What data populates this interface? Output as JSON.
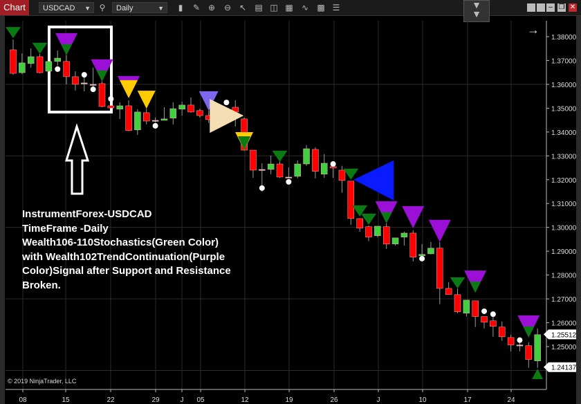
{
  "toolbar": {
    "chart_label": "Chart",
    "instrument": "USDCAD",
    "timeframe": "Daily",
    "icons": [
      "search-icon",
      "bar-type-icon",
      "pencil-icon",
      "zoom-in-icon",
      "zoom-out-icon",
      "pointer-icon",
      "data-box-icon",
      "properties-icon",
      "indicators-icon",
      "strategies-icon",
      "templates-icon",
      "list-icon"
    ],
    "window_buttons": [
      "minimize",
      "restore",
      "close"
    ]
  },
  "overlay": {
    "lines": [
      "InstrumentForex-USDCAD",
      "TimeFrame -Daily",
      "Wealth106-110Stochastics(Green Color)",
      "with Wealth102TrendContinuation(Purple",
      "Color)Signal after  Support and Resistance",
      "Broken."
    ]
  },
  "copyright": "© 2019 NinjaTrader, LLC",
  "colors": {
    "up": "#3fcf3f",
    "down": "#ff0000",
    "wick": "#9a9a9a",
    "green_signal": "#0a7a12",
    "purple_signal": "#9b0fd6",
    "yellow_signal": "#ffcc00",
    "slate_signal": "#7b68ee",
    "beige_arrow": "#f5deb3",
    "blue_arrow": "#0a1aff",
    "dot": "#ffffff"
  },
  "chart_data": {
    "type": "candlestick",
    "symbol": "USDCAD",
    "ylim": [
      1.2395,
      1.3845
    ],
    "y_ticks": [
      "1.38000",
      "1.37000",
      "1.36000",
      "1.35000",
      "1.34000",
      "1.33000",
      "1.32000",
      "1.31000",
      "1.30000",
      "1.29000",
      "1.28000",
      "1.27000",
      "1.26000",
      "1.25000"
    ],
    "x_ticks": [
      "08",
      "15",
      "22",
      "29",
      "J",
      "05",
      "12",
      "19",
      "26",
      "J",
      "10",
      "17",
      "24"
    ],
    "last_prices": [
      "1.25512",
      "1.24137"
    ],
    "grid": true,
    "candles": [
      [
        1.3745,
        1.3788,
        1.364,
        1.3646
      ],
      [
        1.3649,
        1.373,
        1.3643,
        1.369
      ],
      [
        1.3687,
        1.3751,
        1.367,
        1.3716
      ],
      [
        1.3716,
        1.3728,
        1.3646,
        1.3649
      ],
      [
        1.3655,
        1.3699,
        1.3652,
        1.3696
      ],
      [
        1.3696,
        1.3742,
        1.3678,
        1.371
      ],
      [
        1.3696,
        1.3722,
        1.36,
        1.3632
      ],
      [
        1.3632,
        1.3655,
        1.3574,
        1.36
      ],
      [
        1.3606,
        1.3629,
        1.3571,
        1.3606
      ],
      [
        1.36,
        1.367,
        1.3583,
        1.36
      ],
      [
        1.3603,
        1.3612,
        1.3504,
        1.3507
      ],
      [
        1.351,
        1.3513,
        1.3498,
        1.3501
      ],
      [
        1.3496,
        1.3525,
        1.3455,
        1.351
      ],
      [
        1.351,
        1.3533,
        1.3403,
        1.3406
      ],
      [
        1.3409,
        1.3496,
        1.3388,
        1.3484
      ],
      [
        1.3481,
        1.3498,
        1.3432,
        1.3446
      ],
      [
        1.3449,
        1.3461,
        1.344,
        1.3449
      ],
      [
        1.3449,
        1.3504,
        1.3449,
        1.3455
      ],
      [
        1.3458,
        1.3525,
        1.3432,
        1.3498
      ],
      [
        1.3496,
        1.3527,
        1.3469,
        1.3513
      ],
      [
        1.3513,
        1.3545,
        1.3481,
        1.3484
      ],
      [
        1.349,
        1.3498,
        1.3461,
        1.3469
      ],
      [
        1.3469,
        1.349,
        1.3438,
        1.3452
      ],
      [
        1.3472,
        1.349,
        1.3438,
        1.3455
      ],
      [
        1.3475,
        1.349,
        1.3452,
        1.3461
      ],
      [
        1.3504,
        1.3533,
        1.3423,
        1.3484
      ],
      [
        1.3455,
        1.3461,
        1.3322,
        1.3324
      ],
      [
        1.3324,
        1.3324,
        1.3208,
        1.324
      ],
      [
        1.3243,
        1.3269,
        1.315,
        1.3243
      ],
      [
        1.3243,
        1.3301,
        1.3223,
        1.3266
      ],
      [
        1.3266,
        1.3307,
        1.3208,
        1.3211
      ],
      [
        1.3211,
        1.3252,
        1.3206,
        1.3211
      ],
      [
        1.3214,
        1.3281,
        1.3206,
        1.3266
      ],
      [
        1.3266,
        1.3345,
        1.3258,
        1.333
      ],
      [
        1.3327,
        1.3336,
        1.3206,
        1.3235
      ],
      [
        1.3223,
        1.3307,
        1.3208,
        1.3269
      ],
      [
        1.3255,
        1.3255,
        1.3208,
        1.3249
      ],
      [
        1.324,
        1.3258,
        1.3145,
        1.3197
      ],
      [
        1.3194,
        1.3194,
        1.3011,
        1.3037
      ],
      [
        1.3037,
        1.3037,
        1.2982,
        1.2997
      ],
      [
        1.3003,
        1.3008,
        1.2942,
        1.2959
      ],
      [
        1.2965,
        1.3005,
        1.2959,
        1.3005
      ],
      [
        1.3003,
        1.3017,
        1.291,
        1.293
      ],
      [
        1.293,
        1.2956,
        1.2924,
        1.2956
      ],
      [
        1.2959,
        1.2982,
        1.2924,
        1.2976
      ],
      [
        1.2976,
        1.2988,
        1.2857,
        1.2875
      ],
      [
        1.2881,
        1.293,
        1.2881,
        1.2887
      ],
      [
        1.2889,
        1.2939,
        1.2887,
        1.2913
      ],
      [
        1.2913,
        1.2939,
        1.2678,
        1.2744
      ],
      [
        1.2744,
        1.277,
        1.2718,
        1.2718
      ],
      [
        1.2718,
        1.2744,
        1.264,
        1.2646
      ],
      [
        1.264,
        1.2695,
        1.2626,
        1.2695
      ],
      [
        1.2692,
        1.2692,
        1.2582,
        1.2626
      ],
      [
        1.2626,
        1.2626,
        1.2576,
        1.2602
      ],
      [
        1.2608,
        1.264,
        1.2541,
        1.2585
      ],
      [
        1.2582,
        1.2605,
        1.2524,
        1.2541
      ],
      [
        1.2538,
        1.255,
        1.248,
        1.2507
      ],
      [
        1.2507,
        1.2518,
        1.248,
        1.2507
      ],
      [
        1.2504,
        1.2518,
        1.2411,
        1.2446
      ],
      [
        1.244,
        1.2576,
        1.2411,
        1.255
      ]
    ],
    "signals": [
      {
        "i": 0,
        "kind": "green",
        "price": 1.3794
      },
      {
        "i": 3,
        "kind": "green",
        "price": 1.3728
      },
      {
        "i": 6,
        "kind": "purple-green",
        "price": 1.3722
      },
      {
        "i": 10,
        "kind": "purple-green",
        "price": 1.3612
      },
      {
        "i": 13,
        "kind": "purple-yellow",
        "price": 1.3542
      },
      {
        "i": 15,
        "kind": "yellow",
        "price": 1.3498
      },
      {
        "i": 22,
        "kind": "slate",
        "price": 1.349
      },
      {
        "i": 25,
        "kind": "beige-arrow-right",
        "price": 1.3469
      },
      {
        "i": 26,
        "kind": "yellow-green",
        "price": 1.3324
      },
      {
        "i": 30,
        "kind": "green",
        "price": 1.3275
      },
      {
        "i": 38,
        "kind": "green",
        "price": 1.32
      },
      {
        "i": 38,
        "kind": "blue-arrow-left",
        "price": 1.32
      },
      {
        "i": 39,
        "kind": "green",
        "price": 1.3046
      },
      {
        "i": 40,
        "kind": "green",
        "price": 1.3011
      },
      {
        "i": 42,
        "kind": "purple-green",
        "price": 1.3017
      },
      {
        "i": 45,
        "kind": "purple",
        "price": 1.2996
      },
      {
        "i": 48,
        "kind": "purple",
        "price": 1.2939
      },
      {
        "i": 50,
        "kind": "green",
        "price": 1.2744
      },
      {
        "i": 52,
        "kind": "purple-green",
        "price": 1.2726
      },
      {
        "i": 58,
        "kind": "purple-green",
        "price": 1.2538
      },
      {
        "i": 59,
        "kind": "green-up",
        "price": 1.2407
      }
    ],
    "dots": [
      {
        "i": 5,
        "price": 1.3664
      },
      {
        "i": 8,
        "price": 1.364
      },
      {
        "i": 9,
        "price": 1.3579
      },
      {
        "i": 11,
        "price": 1.3539
      },
      {
        "i": 16,
        "price": 1.3426
      },
      {
        "i": 24,
        "price": 1.3524
      },
      {
        "i": 28,
        "price": 1.3165
      },
      {
        "i": 31,
        "price": 1.3191
      },
      {
        "i": 36,
        "price": 1.3266
      },
      {
        "i": 46,
        "price": 1.2869
      },
      {
        "i": 53,
        "price": 1.2648
      },
      {
        "i": 54,
        "price": 1.2636
      },
      {
        "i": 57,
        "price": 1.2527
      }
    ]
  }
}
